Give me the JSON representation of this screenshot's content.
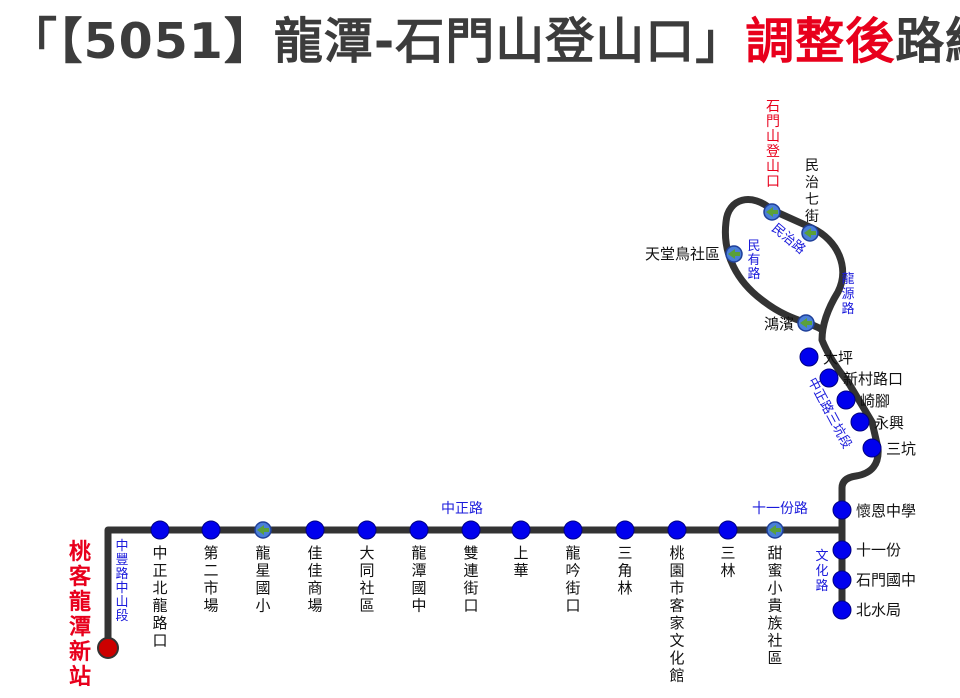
{
  "title": {
    "prefix": "「【5051】龍潭-石門山登山口」",
    "highlight": "調整後",
    "suffix": "路線圖"
  },
  "colors": {
    "route": "#333333",
    "stop": "#0000ee",
    "adjusted_stop": "#5aa03a",
    "terminal": "#cc0000",
    "road_text": "#1a1adb",
    "stop_text": "#111111",
    "highlight_text": "#e8001c"
  },
  "terminal": {
    "name": "桃客龍潭新站"
  },
  "roads": [
    {
      "id": "zhongfeng",
      "name": "中豐路中山段"
    },
    {
      "id": "zhongzheng",
      "name": "中正路"
    },
    {
      "id": "shiyifen",
      "name": "十一份路"
    },
    {
      "id": "wenhua",
      "name": "文化路"
    },
    {
      "id": "zhongzheng3",
      "name": "中正路三坑段"
    },
    {
      "id": "longyuan",
      "name": "龍源路"
    },
    {
      "id": "minzhi",
      "name": "民治路"
    },
    {
      "id": "minyou",
      "name": "民有路"
    }
  ],
  "stops_bottom": [
    {
      "name": "中正北龍路口",
      "type": "regular"
    },
    {
      "name": "第二市場",
      "type": "regular"
    },
    {
      "name": "龍星國小",
      "type": "adjusted"
    },
    {
      "name": "佳佳商場",
      "type": "regular"
    },
    {
      "name": "大同社區",
      "type": "regular"
    },
    {
      "name": "龍潭國中",
      "type": "regular"
    },
    {
      "name": "雙連街口",
      "type": "regular"
    },
    {
      "name": "上華",
      "type": "regular"
    },
    {
      "name": "龍吟街口",
      "type": "regular"
    },
    {
      "name": "三角林",
      "type": "regular"
    },
    {
      "name": "桃園市客家文化館",
      "type": "regular"
    },
    {
      "name": "三林",
      "type": "regular"
    },
    {
      "name": "甜蜜小貴族社區",
      "type": "adjusted"
    }
  ],
  "stops_branch": [
    {
      "name": "十一份",
      "type": "regular"
    },
    {
      "name": "石門國中",
      "type": "regular"
    },
    {
      "name": "北水局",
      "type": "regular"
    }
  ],
  "stops_mountain": [
    {
      "name": "懷恩中學",
      "type": "regular"
    },
    {
      "name": "三坑",
      "type": "regular"
    },
    {
      "name": "永興",
      "type": "regular"
    },
    {
      "name": "崎腳",
      "type": "regular"
    },
    {
      "name": "新村路口",
      "type": "regular"
    },
    {
      "name": "大坪",
      "type": "regular"
    },
    {
      "name": "鴻濱",
      "type": "adjusted"
    }
  ],
  "stops_loop": [
    {
      "name": "民治七街",
      "type": "adjusted"
    },
    {
      "name": "石門山登山口",
      "type": "adjusted",
      "emphasis": true
    },
    {
      "name": "天堂鳥社區",
      "type": "adjusted"
    }
  ]
}
